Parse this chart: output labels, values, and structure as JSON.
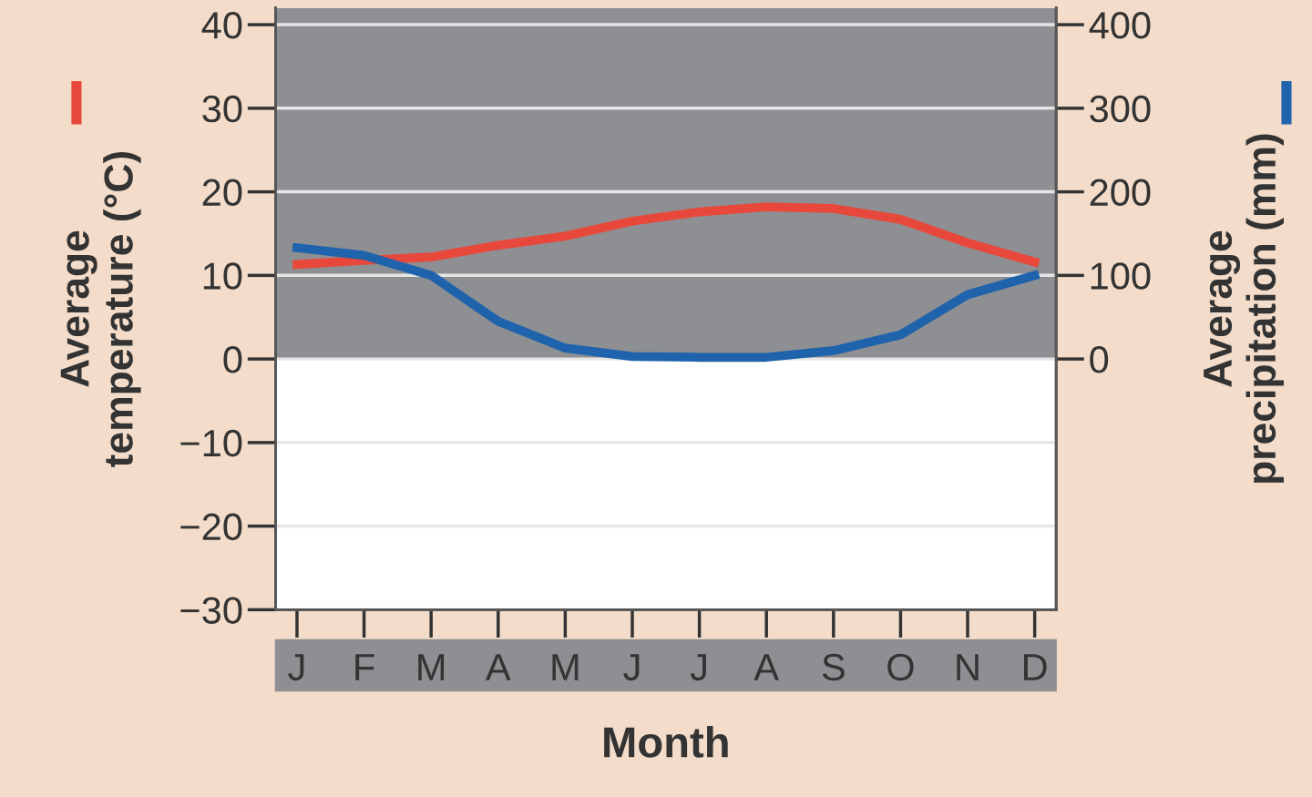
{
  "chart_data": {
    "type": "line",
    "categories": [
      "J",
      "F",
      "M",
      "A",
      "M",
      "J",
      "J",
      "A",
      "S",
      "O",
      "N",
      "D"
    ],
    "xlabel": "Month",
    "ylabel": "Average\ntemperature (°C)",
    "y2label": "Average\nprecipitation (mm)",
    "series": [
      {
        "color": "#e8483b",
        "values": [
          11.3,
          11.8,
          12.2,
          13.6,
          14.7,
          16.5,
          17.6,
          18.2,
          18.0,
          16.7,
          13.9,
          11.6
        ]
      },
      {
        "color": "#1f63ad",
        "axis": "y2",
        "values": [
          133,
          124,
          100,
          45,
          13,
          3,
          2,
          2,
          10,
          29,
          77,
          100
        ]
      }
    ],
    "ylim": [
      -30,
      42
    ],
    "yticks": [
      -30,
      -20,
      -10,
      0,
      10,
      20,
      30,
      40
    ],
    "y2lim": [
      -300,
      420
    ],
    "y2ticks": [
      0,
      100,
      200,
      300,
      400
    ],
    "bands": [
      {
        "axis": "y",
        "from": 0,
        "to": 42,
        "color": "#8e8f92"
      }
    ],
    "grid": "y",
    "legend": false,
    "marker": "none",
    "line_style": "solid"
  }
}
